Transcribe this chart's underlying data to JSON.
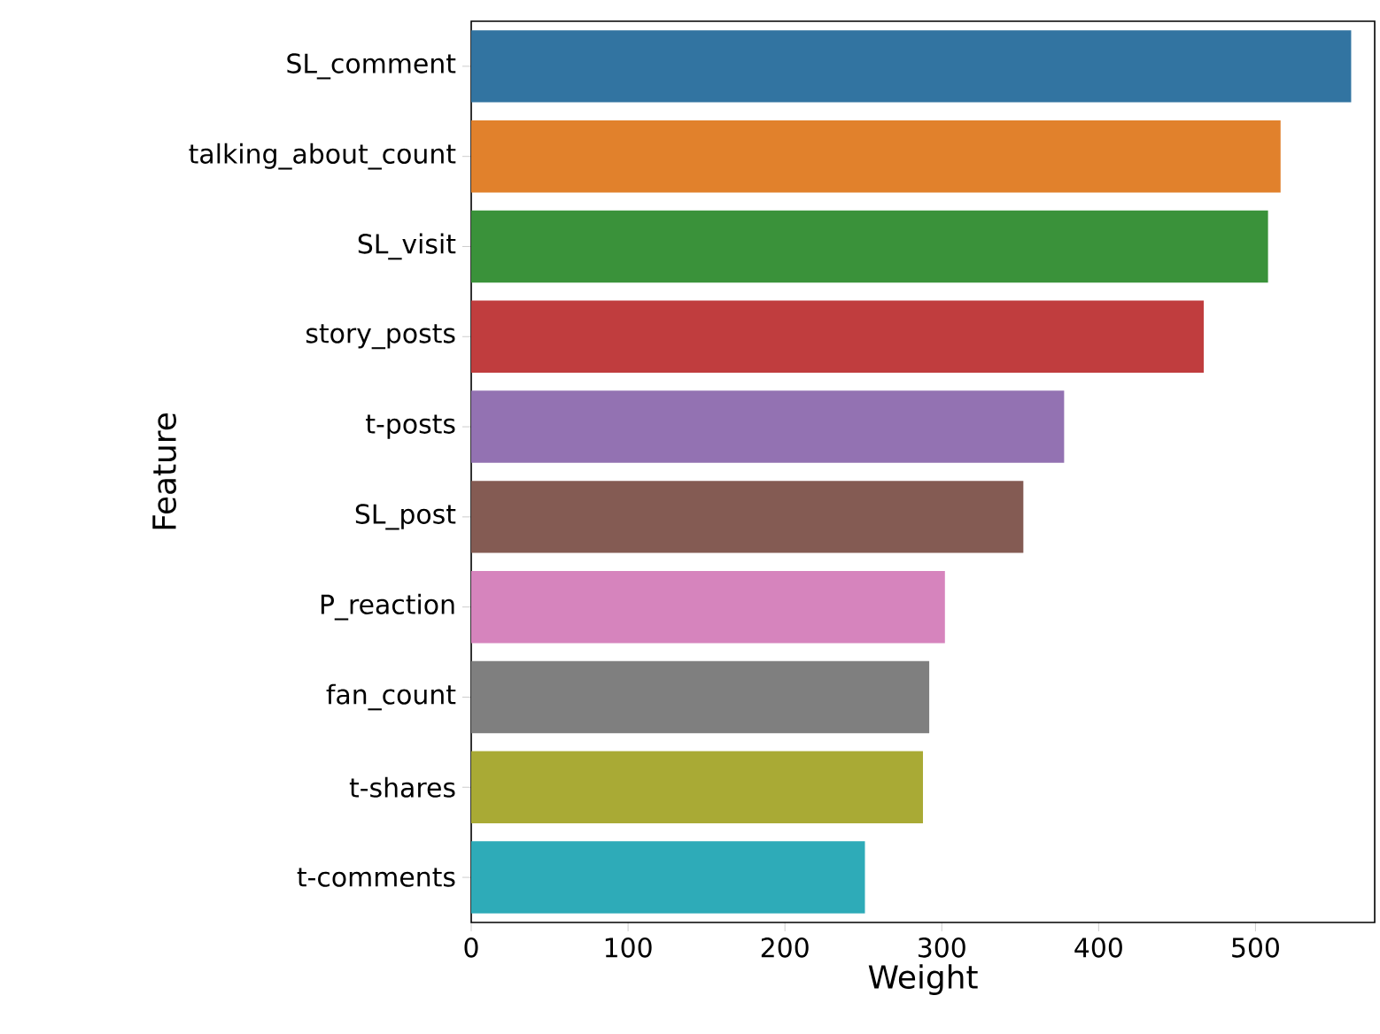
{
  "chart_data": {
    "type": "bar",
    "orientation": "horizontal",
    "xlabel": "Weight",
    "ylabel": "Feature",
    "categories": [
      "SL_comment",
      "talking_about_count",
      "SL_visit",
      "story_posts",
      "t-posts",
      "SL_post",
      "P_reaction",
      "fan_count",
      "t-shares",
      "t-comments"
    ],
    "values": [
      561,
      516,
      508,
      467,
      378,
      352,
      302,
      292,
      288,
      251
    ],
    "colors": [
      "#3274a1",
      "#e1812c",
      "#3a923a",
      "#c03d3e",
      "#9372b2",
      "#845b53",
      "#d684bd",
      "#7f7f7f",
      "#a9aa35",
      "#2eabb8"
    ],
    "xlim": [
      0,
      576
    ],
    "xticks": [
      0,
      100,
      200,
      300,
      400,
      500
    ]
  }
}
